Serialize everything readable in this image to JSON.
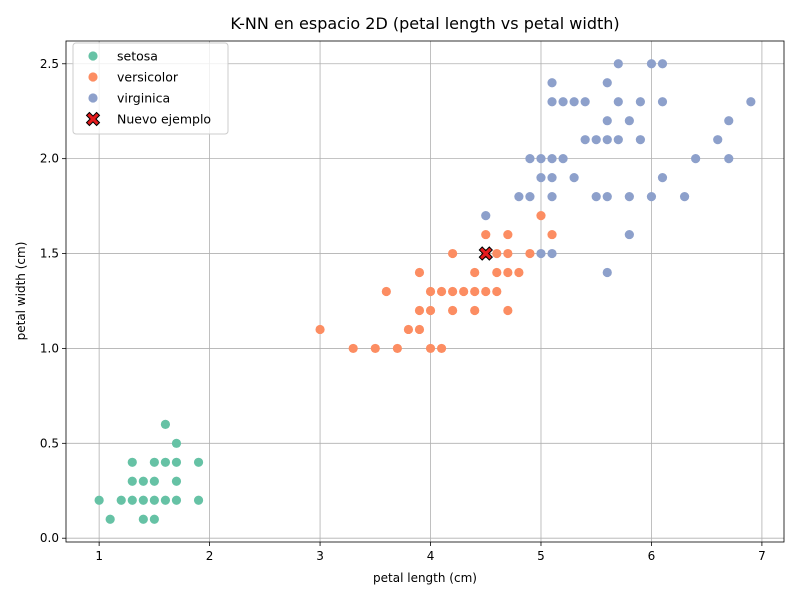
{
  "colors": {
    "setosa": "#66c2a5",
    "versicolor": "#fc8d62",
    "virginica": "#8da0cb",
    "new_point": "#e41a1c"
  },
  "chart_data": {
    "type": "scatter",
    "title": "K-NN en espacio 2D (petal length vs petal width)",
    "xlabel": "petal length (cm)",
    "ylabel": "petal width (cm)",
    "xlim": [
      0.7,
      7.2
    ],
    "ylim": [
      -0.02,
      2.62
    ],
    "xticks": [
      "1",
      "2",
      "3",
      "4",
      "5",
      "6",
      "7"
    ],
    "yticks": [
      "0.0",
      "0.5",
      "1.0",
      "1.5",
      "2.0",
      "2.5"
    ],
    "grid": true,
    "legend_position": "top-left",
    "series": [
      {
        "name": "setosa",
        "color": "#66c2a5",
        "points": [
          [
            1.0,
            0.2
          ],
          [
            1.1,
            0.1
          ],
          [
            1.2,
            0.2
          ],
          [
            1.3,
            0.2
          ],
          [
            1.3,
            0.3
          ],
          [
            1.3,
            0.4
          ],
          [
            1.4,
            0.1
          ],
          [
            1.4,
            0.2
          ],
          [
            1.4,
            0.3
          ],
          [
            1.5,
            0.1
          ],
          [
            1.5,
            0.2
          ],
          [
            1.5,
            0.3
          ],
          [
            1.5,
            0.4
          ],
          [
            1.6,
            0.2
          ],
          [
            1.6,
            0.4
          ],
          [
            1.6,
            0.6
          ],
          [
            1.7,
            0.2
          ],
          [
            1.7,
            0.3
          ],
          [
            1.7,
            0.4
          ],
          [
            1.7,
            0.5
          ],
          [
            1.9,
            0.2
          ],
          [
            1.9,
            0.4
          ]
        ]
      },
      {
        "name": "versicolor",
        "color": "#fc8d62",
        "points": [
          [
            3.0,
            1.1
          ],
          [
            3.3,
            1.0
          ],
          [
            3.5,
            1.0
          ],
          [
            3.6,
            1.3
          ],
          [
            3.7,
            1.0
          ],
          [
            3.8,
            1.1
          ],
          [
            3.9,
            1.1
          ],
          [
            3.9,
            1.2
          ],
          [
            3.9,
            1.4
          ],
          [
            4.0,
            1.0
          ],
          [
            4.0,
            1.2
          ],
          [
            4.0,
            1.3
          ],
          [
            4.1,
            1.0
          ],
          [
            4.1,
            1.3
          ],
          [
            4.2,
            1.2
          ],
          [
            4.2,
            1.3
          ],
          [
            4.2,
            1.5
          ],
          [
            4.3,
            1.3
          ],
          [
            4.4,
            1.2
          ],
          [
            4.4,
            1.3
          ],
          [
            4.4,
            1.4
          ],
          [
            4.5,
            1.3
          ],
          [
            4.5,
            1.5
          ],
          [
            4.5,
            1.6
          ],
          [
            4.6,
            1.3
          ],
          [
            4.6,
            1.4
          ],
          [
            4.6,
            1.5
          ],
          [
            4.7,
            1.2
          ],
          [
            4.7,
            1.4
          ],
          [
            4.7,
            1.5
          ],
          [
            4.7,
            1.6
          ],
          [
            4.8,
            1.4
          ],
          [
            4.9,
            1.5
          ],
          [
            5.0,
            1.7
          ],
          [
            5.1,
            1.6
          ]
        ]
      },
      {
        "name": "virginica",
        "color": "#8da0cb",
        "points": [
          [
            4.5,
            1.7
          ],
          [
            4.8,
            1.8
          ],
          [
            4.9,
            1.8
          ],
          [
            4.9,
            2.0
          ],
          [
            5.0,
            1.5
          ],
          [
            5.0,
            1.9
          ],
          [
            5.0,
            2.0
          ],
          [
            5.1,
            1.5
          ],
          [
            5.1,
            1.8
          ],
          [
            5.1,
            1.9
          ],
          [
            5.1,
            2.0
          ],
          [
            5.1,
            2.3
          ],
          [
            5.1,
            2.4
          ],
          [
            5.2,
            2.0
          ],
          [
            5.2,
            2.3
          ],
          [
            5.3,
            1.9
          ],
          [
            5.3,
            2.3
          ],
          [
            5.4,
            2.1
          ],
          [
            5.4,
            2.3
          ],
          [
            5.5,
            1.8
          ],
          [
            5.5,
            2.1
          ],
          [
            5.6,
            1.4
          ],
          [
            5.6,
            1.8
          ],
          [
            5.6,
            2.1
          ],
          [
            5.6,
            2.2
          ],
          [
            5.6,
            2.4
          ],
          [
            5.7,
            2.1
          ],
          [
            5.7,
            2.3
          ],
          [
            5.7,
            2.5
          ],
          [
            5.8,
            1.6
          ],
          [
            5.8,
            1.8
          ],
          [
            5.8,
            2.2
          ],
          [
            5.9,
            2.1
          ],
          [
            5.9,
            2.3
          ],
          [
            6.0,
            1.8
          ],
          [
            6.0,
            2.5
          ],
          [
            6.1,
            1.9
          ],
          [
            6.1,
            2.3
          ],
          [
            6.1,
            2.5
          ],
          [
            6.3,
            1.8
          ],
          [
            6.4,
            2.0
          ],
          [
            6.6,
            2.1
          ],
          [
            6.7,
            2.0
          ],
          [
            6.7,
            2.2
          ],
          [
            6.9,
            2.3
          ]
        ]
      },
      {
        "name": "Nuevo ejemplo",
        "color": "#e41a1c",
        "marker": "X",
        "points": [
          [
            4.5,
            1.5
          ]
        ]
      }
    ]
  }
}
